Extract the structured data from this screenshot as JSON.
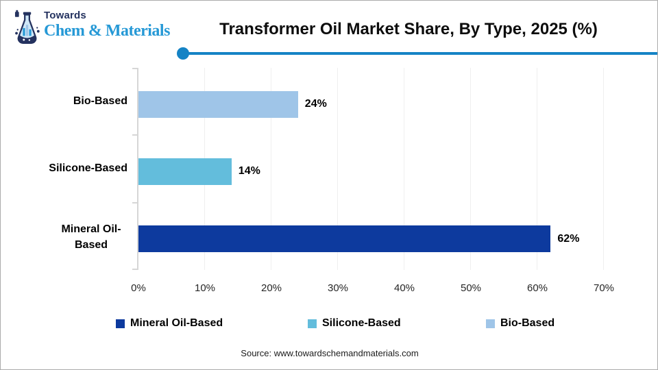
{
  "header": {
    "logo": {
      "towards": "Towards",
      "brand": "Chem & Materials"
    },
    "title": "Transformer Oil Market Share, By Type, 2025 (%)"
  },
  "chart_data": {
    "type": "bar",
    "orientation": "horizontal",
    "title": "Transformer Oil Market Share, By Type, 2025 (%)",
    "categories": [
      "Bio-Based",
      "Silicone-Based",
      "Mineral Oil-Based"
    ],
    "values": [
      24,
      14,
      62
    ],
    "value_labels": [
      "24%",
      "14%",
      "62%"
    ],
    "bar_colors": [
      "#9fc5e8",
      "#63bddc",
      "#0d3a9e"
    ],
    "xlim": [
      0,
      70
    ],
    "x_tick_labels": [
      "0%",
      "10%",
      "20%",
      "30%",
      "40%",
      "50%",
      "60%",
      "70%"
    ],
    "grid": true,
    "legend_position": "bottom",
    "legend": [
      {
        "label": "Mineral Oil-Based",
        "color": "#0d3a9e"
      },
      {
        "label": "Silicone-Based",
        "color": "#63bddc"
      },
      {
        "label": "Bio-Based",
        "color": "#9fc5e8"
      }
    ]
  },
  "footer": {
    "source": "Source: www.towardschemandmaterials.com"
  },
  "colors": {
    "accent_line": "#1583c5",
    "logo_navy": "#24325f",
    "logo_blue": "#2699d6",
    "axis_line": "#d6d6d6",
    "gridline": "#efefef"
  }
}
